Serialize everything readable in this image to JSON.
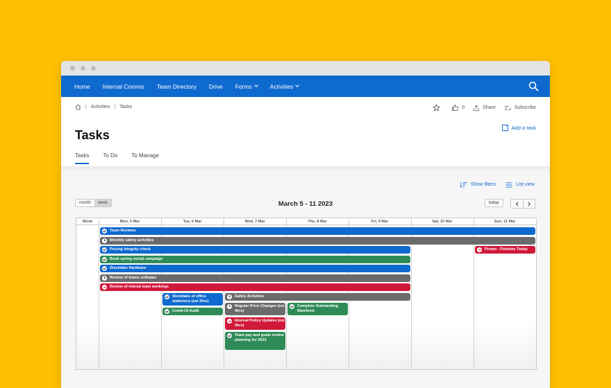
{
  "colors": {
    "background": "#FFC001",
    "nav": "#0F6ACF",
    "event_blue": "#0F6ACF",
    "event_gray": "#6B6B6B",
    "event_green": "#2E8B57",
    "event_red": "#D1193A"
  },
  "nav": {
    "items": [
      {
        "label": "Home",
        "dropdown": false
      },
      {
        "label": "Internal Comms",
        "dropdown": false
      },
      {
        "label": "Team Directory",
        "dropdown": false
      },
      {
        "label": "Drive",
        "dropdown": false
      },
      {
        "label": "Forms",
        "dropdown": true
      },
      {
        "label": "Activities",
        "dropdown": true
      }
    ],
    "search_icon": "search-icon"
  },
  "breadcrumb": {
    "home_icon": "home-icon",
    "items": [
      "Activities",
      "Tasks"
    ]
  },
  "actions": {
    "like_count": "0",
    "share": "Share",
    "subscribe": "Subscribe",
    "add_task": "Add a task"
  },
  "page": {
    "title": "Tasks"
  },
  "tabs": [
    {
      "label": "Tasks",
      "active": true
    },
    {
      "label": "To Do",
      "active": false
    },
    {
      "label": "To Manage",
      "active": false
    }
  ],
  "toolbar": {
    "show_filters": "Show filters",
    "list_view": "List view",
    "mode_month": "month",
    "mode_week": "week",
    "mode_selected": "week",
    "range_title": "March 5 - 11 2023",
    "today": "today"
  },
  "calendar": {
    "week_label": "Week",
    "days": [
      "Mon, 5 Mar",
      "Tue, 6 Mar",
      "Wed, 7 Mar",
      "Thu, 8 Mar",
      "Fri, 9 Mar",
      "Sat, 10 Mar",
      "Sun, 11 Mar"
    ],
    "events": [
      {
        "title": "Team Reviews",
        "color": "blue",
        "icon": "check",
        "start_day": 0,
        "span": 7
      },
      {
        "title": "Monthly safety activities",
        "color": "gray",
        "icon": "clock",
        "start_day": 0,
        "span": 7
      },
      {
        "title": "Pricing integrity check",
        "color": "blue",
        "icon": "check",
        "start_day": 0,
        "span": 5
      },
      {
        "title": "Promo - Finishes Today",
        "color": "red",
        "icon": "minus",
        "start_day": 6,
        "span": 1
      },
      {
        "title": "Book spring social campaign",
        "color": "green",
        "icon": "check",
        "start_day": 0,
        "span": 5
      },
      {
        "title": "Stocktake Hardware",
        "color": "blue",
        "icon": "check",
        "start_day": 0,
        "span": 5
      },
      {
        "title": "Review of teams software",
        "color": "gray",
        "icon": "clock",
        "start_day": 0,
        "span": 5
      },
      {
        "title": "Review of intenal team workings",
        "color": "red",
        "icon": "minus",
        "start_day": 0,
        "span": 5
      },
      {
        "title": "Stocktake of office stationery (est 2hrs)",
        "color": "blue",
        "icon": "check",
        "start_day": 1,
        "span": 1
      },
      {
        "title": "Safety Activities",
        "color": "gray",
        "icon": "clock",
        "start_day": 2,
        "span": 3
      },
      {
        "title": "Covid-19 Audit",
        "color": "green",
        "icon": "check",
        "start_day": 1,
        "span": 1
      },
      {
        "title": "Regular Price Changes (est 4hrs)",
        "color": "gray",
        "icon": "clock",
        "start_day": 2,
        "span": 1
      },
      {
        "title": "Complete Outstanding Manifests",
        "color": "green",
        "icon": "check",
        "start_day": 3,
        "span": 1
      },
      {
        "title": "Internal Policy Updates (est 3hrs)",
        "color": "red",
        "icon": "minus",
        "start_day": 2,
        "span": 1
      },
      {
        "title": "Team pay and goals review planning for 2023",
        "color": "green",
        "icon": "check",
        "start_day": 2,
        "span": 1
      }
    ]
  }
}
